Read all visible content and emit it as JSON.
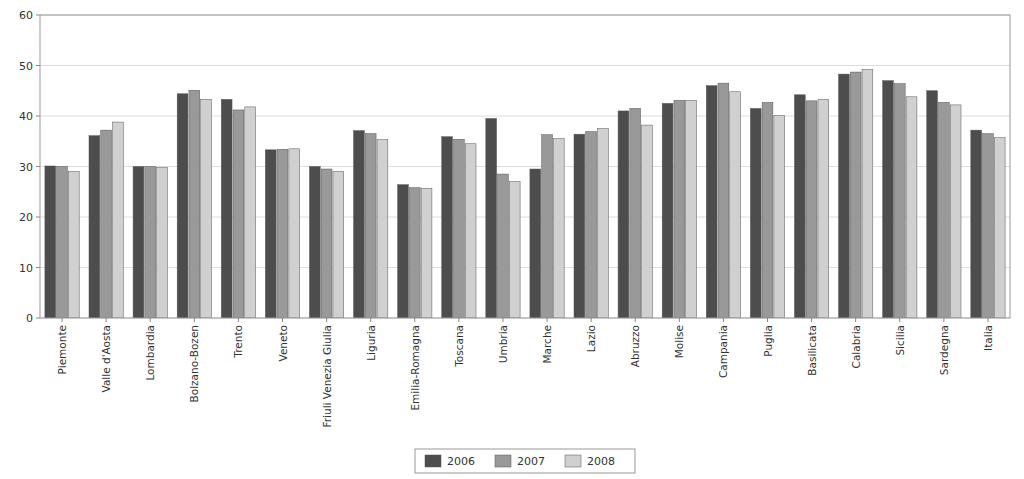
{
  "chart_data": {
    "type": "bar",
    "categories": [
      "Piemonte",
      "Valle d'Aosta",
      "Lombardia",
      "Bolzano-Bozen",
      "Trento",
      "Veneto",
      "Friuli Venezia Giulia",
      "Liguria",
      "Emilia-Romagna",
      "Toscana",
      "Umbria",
      "Marche",
      "Lazio",
      "Abruzzo",
      "Molise",
      "Campania",
      "Puglia",
      "Basilicata",
      "Calabria",
      "Sicilia",
      "Sardegna",
      "Italia"
    ],
    "series": [
      {
        "name": "2006",
        "color": "#4d4d4d",
        "values": [
          30.1,
          36.1,
          30.0,
          44.4,
          43.3,
          33.3,
          30.0,
          37.1,
          26.4,
          35.9,
          39.5,
          29.5,
          36.4,
          41.0,
          42.5,
          46.0,
          41.5,
          44.2,
          48.3,
          47.0,
          45.0,
          37.2
        ]
      },
      {
        "name": "2007",
        "color": "#999999",
        "values": [
          30.0,
          37.2,
          30.0,
          45.1,
          41.2,
          33.4,
          29.5,
          36.5,
          25.8,
          35.4,
          28.5,
          36.3,
          36.9,
          41.5,
          43.1,
          46.5,
          42.7,
          43.0,
          48.7,
          46.4,
          42.7,
          36.5
        ]
      },
      {
        "name": "2008",
        "color": "#d0d0d0",
        "values": [
          29.0,
          38.8,
          29.8,
          43.3,
          41.8,
          33.5,
          29.0,
          35.3,
          25.7,
          34.5,
          27.0,
          35.5,
          37.5,
          38.2,
          43.1,
          44.8,
          40.1,
          43.3,
          49.2,
          43.8,
          42.2,
          35.7
        ]
      }
    ],
    "ylim": [
      0,
      60
    ],
    "yticks": [
      0,
      10,
      20,
      30,
      40,
      50,
      60
    ],
    "grid": true,
    "legend": "bottom"
  }
}
